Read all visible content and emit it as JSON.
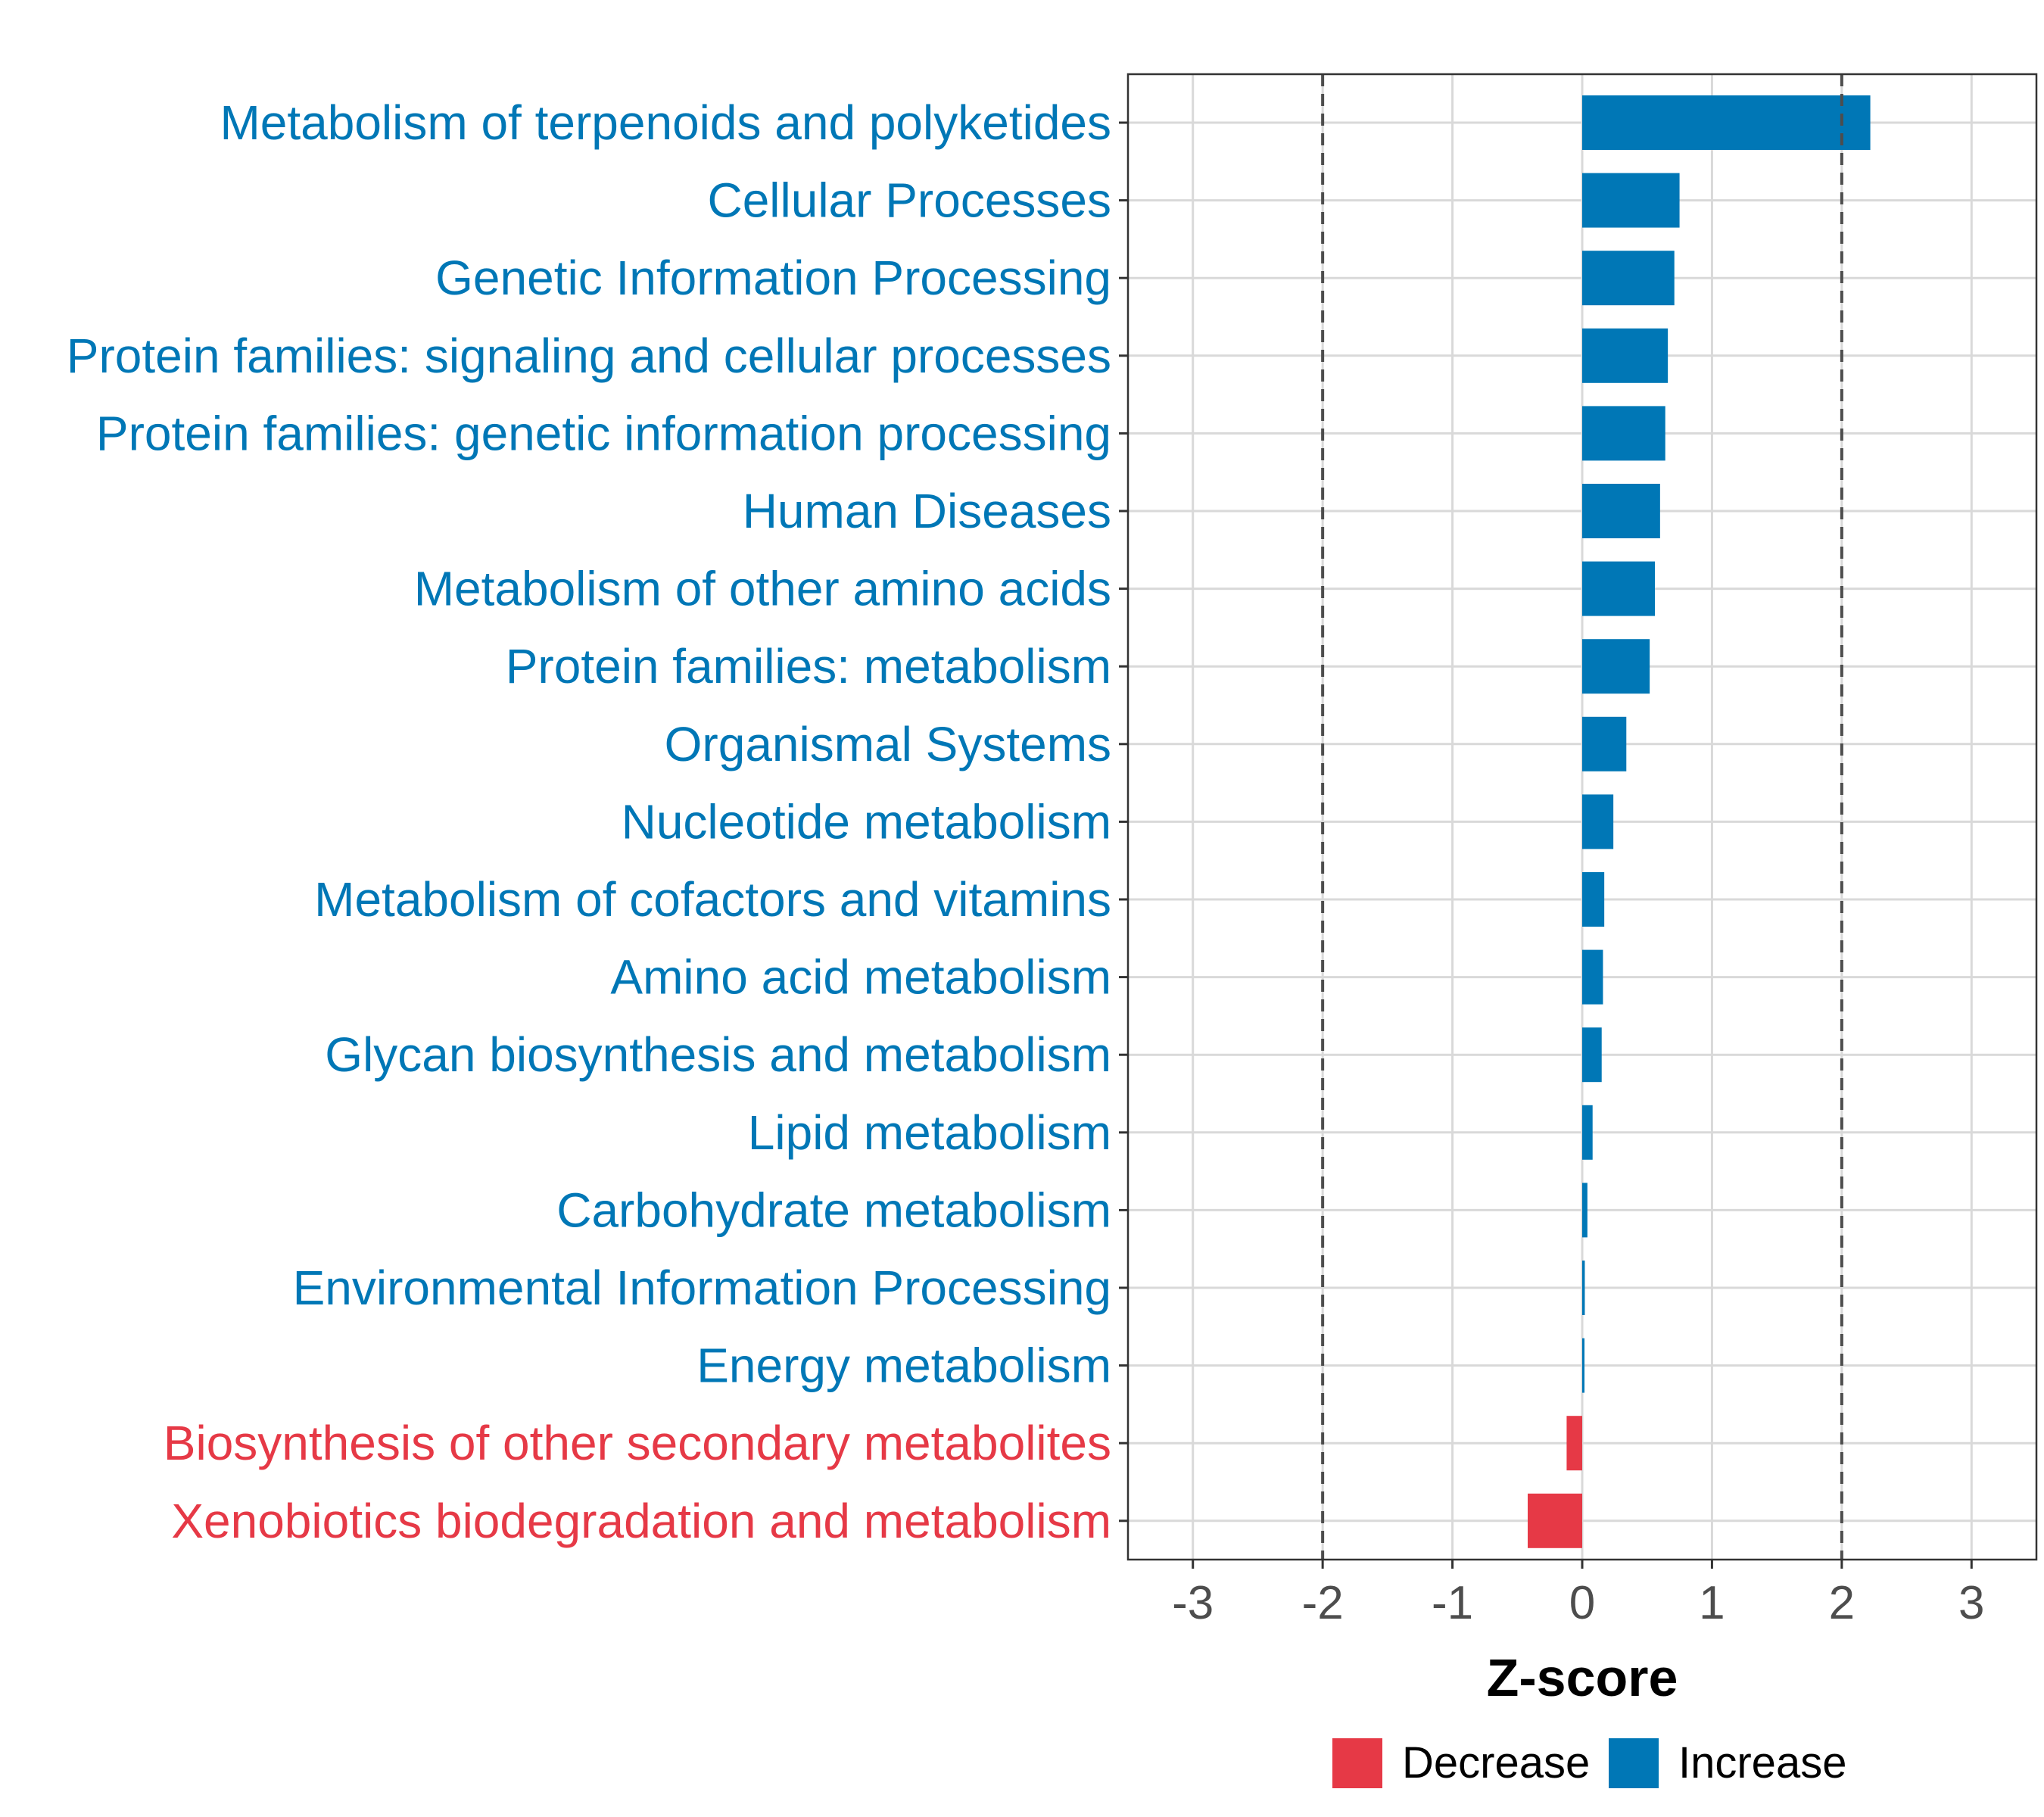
{
  "chart_data": {
    "type": "bar",
    "orientation": "horizontal",
    "title": "",
    "xlabel": "Z-score",
    "ylabel": "",
    "xlim": [
      -3.5,
      3.5
    ],
    "xticks": [
      -3,
      -2,
      -1,
      0,
      1,
      2,
      3
    ],
    "threshold_lines": [
      -2,
      2
    ],
    "grid": true,
    "legend_position": "bottom",
    "categories": [
      "Metabolism of terpenoids and polyketides",
      "Cellular Processes",
      "Genetic Information Processing",
      "Protein families: signaling and cellular processes",
      "Protein families: genetic information processing",
      "Human Diseases",
      "Metabolism of other amino acids",
      "Protein families: metabolism",
      "Organismal Systems",
      "Nucleotide metabolism",
      "Metabolism of cofactors and vitamins",
      "Amino acid metabolism",
      "Glycan biosynthesis and metabolism",
      "Lipid metabolism",
      "Carbohydrate metabolism",
      "Environmental Information Processing",
      "Energy metabolism",
      "Biosynthesis of other secondary metabolites",
      "Xenobiotics biodegradation and metabolism"
    ],
    "values": [
      2.22,
      0.75,
      0.71,
      0.66,
      0.64,
      0.6,
      0.56,
      0.52,
      0.34,
      0.24,
      0.17,
      0.16,
      0.15,
      0.08,
      0.04,
      0.02,
      0.01,
      -0.12,
      -0.42
    ],
    "direction": [
      "Increase",
      "Increase",
      "Increase",
      "Increase",
      "Increase",
      "Increase",
      "Increase",
      "Increase",
      "Increase",
      "Increase",
      "Increase",
      "Increase",
      "Increase",
      "Increase",
      "Increase",
      "Increase",
      "Increase",
      "Decrease",
      "Decrease"
    ],
    "legend": [
      {
        "label": "Decrease",
        "color": "#e63946"
      },
      {
        "label": "Increase",
        "color": "#0077b6"
      }
    ]
  },
  "colors": {
    "increase": "#0077b6",
    "decrease": "#e63946",
    "grid": "#d9d9d9",
    "threshold": "#4d4d4d"
  }
}
